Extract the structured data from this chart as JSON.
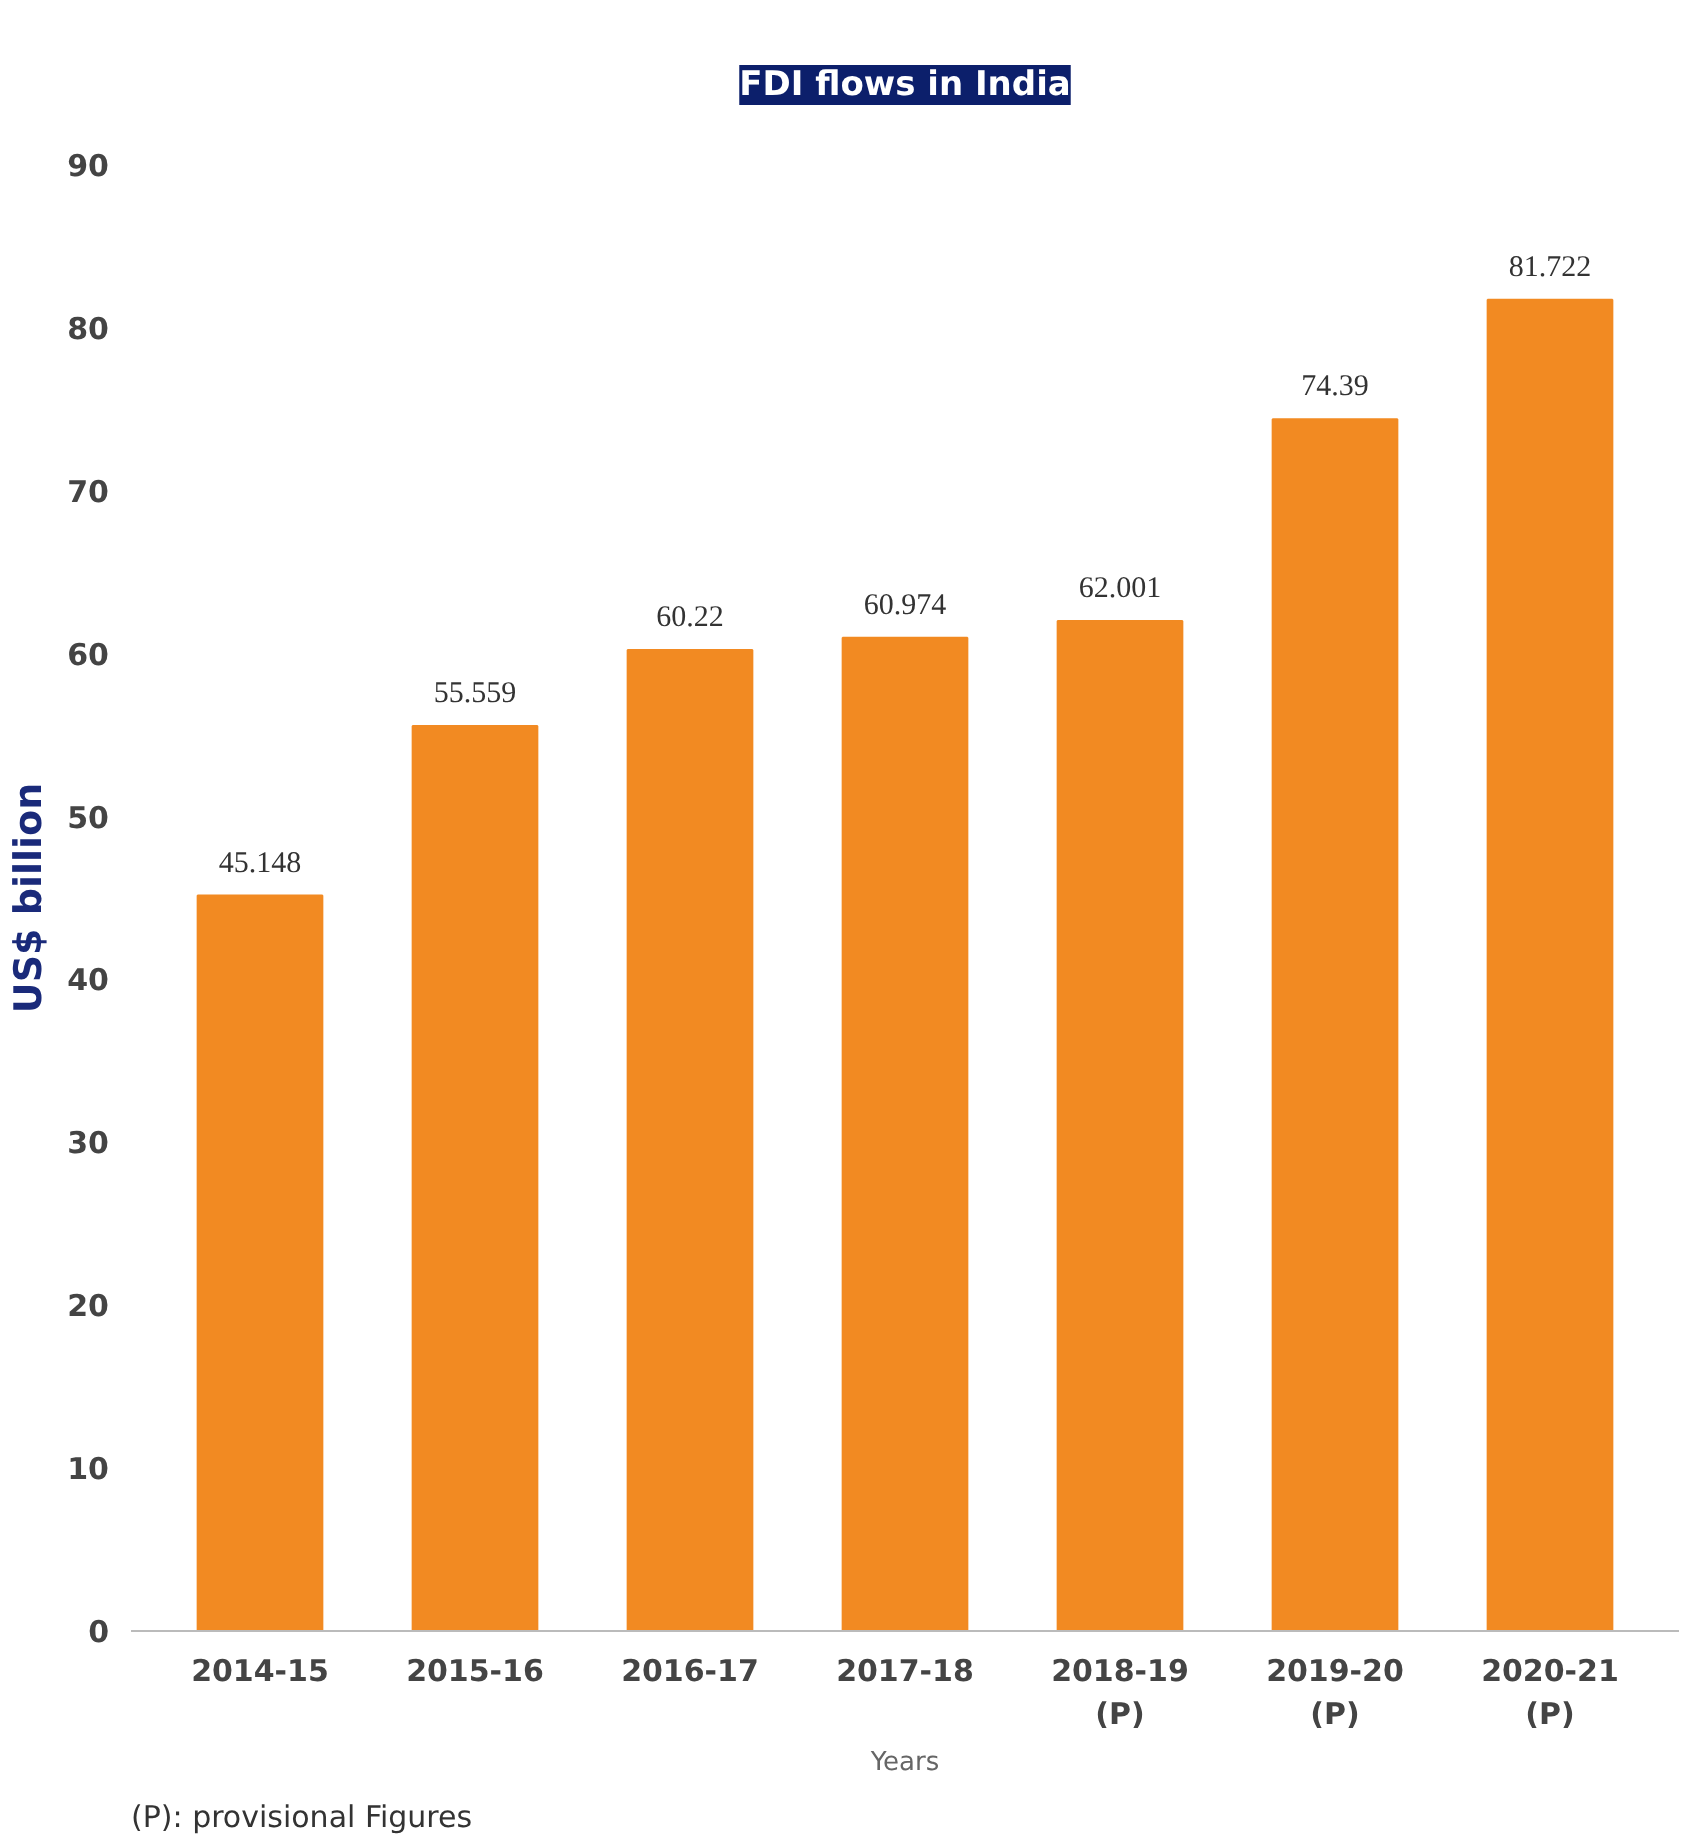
{
  "chart_data": {
    "type": "bar",
    "title": "FDI flows in India",
    "xlabel": "Years",
    "ylabel": "US$ billion",
    "categories": [
      "2014-15",
      "2015-16",
      "2016-17",
      "2017-18",
      "2018-19\n(P)",
      "2019-20\n(P)",
      "2020-21\n(P)"
    ],
    "values": [
      45.148,
      55.559,
      60.22,
      60.974,
      62.001,
      74.39,
      81.722
    ],
    "color": "#f28a22",
    "ylim": [
      0,
      90
    ],
    "yticks": [
      0,
      10,
      20,
      30,
      40,
      50,
      60,
      70,
      80,
      90
    ],
    "grid": false,
    "data_labels": true,
    "annotations": [
      "(P): provisional Figures"
    ]
  }
}
